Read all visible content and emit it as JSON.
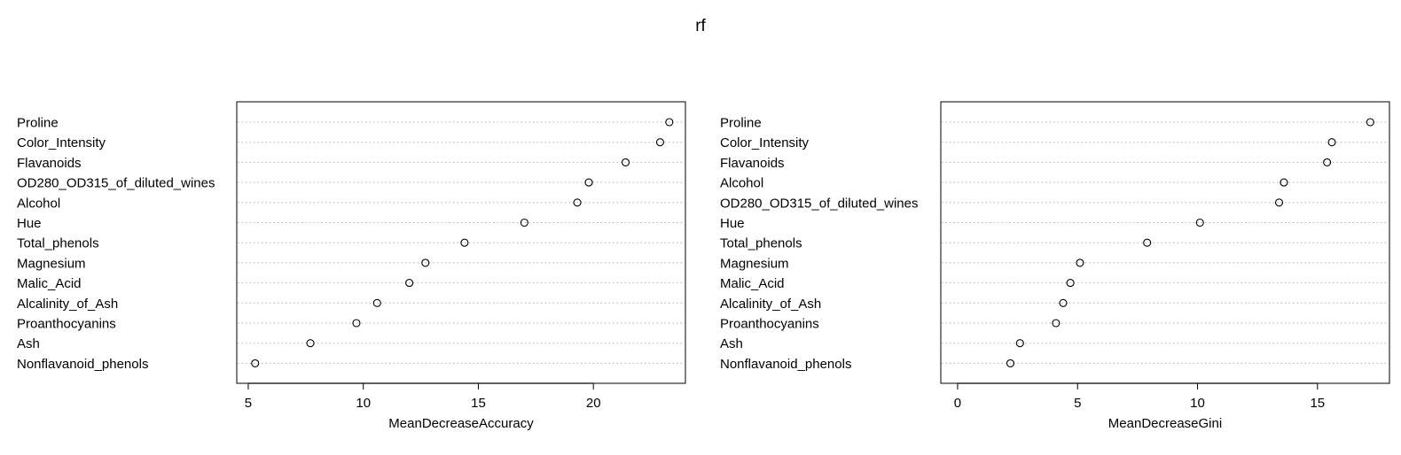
{
  "figure": {
    "title": "rf"
  },
  "chart_data": [
    {
      "type": "scatter",
      "style": "dotchart",
      "title": "",
      "xlabel": "MeanDecreaseAccuracy",
      "ylabel": "",
      "xlim": [
        4.5,
        24
      ],
      "xticks": [
        5,
        10,
        15,
        20
      ],
      "grid": "dotted horizontal",
      "categories": [
        "Proline",
        "Color_Intensity",
        "Flavanoids",
        "OD280_OD315_of_diluted_wines",
        "Alcohol",
        "Hue",
        "Total_phenols",
        "Magnesium",
        "Malic_Acid",
        "Alcalinity_of_Ash",
        "Proanthocyanins",
        "Ash",
        "Nonflavanoid_phenols"
      ],
      "values": [
        23.3,
        22.9,
        21.4,
        19.8,
        19.3,
        17.0,
        14.4,
        12.7,
        12.0,
        10.6,
        9.7,
        7.7,
        5.3
      ]
    },
    {
      "type": "scatter",
      "style": "dotchart",
      "title": "",
      "xlabel": "MeanDecreaseGini",
      "ylabel": "",
      "xlim": [
        -0.7,
        18
      ],
      "xticks": [
        0,
        5,
        10,
        15
      ],
      "grid": "dotted horizontal",
      "categories": [
        "Proline",
        "Color_Intensity",
        "Flavanoids",
        "Alcohol",
        "OD280_OD315_of_diluted_wines",
        "Hue",
        "Total_phenols",
        "Magnesium",
        "Malic_Acid",
        "Alcalinity_of_Ash",
        "Proanthocyanins",
        "Ash",
        "Nonflavanoid_phenols"
      ],
      "values": [
        17.2,
        15.6,
        15.4,
        13.6,
        13.4,
        10.1,
        7.9,
        5.1,
        4.7,
        4.4,
        4.1,
        2.6,
        2.2
      ]
    }
  ]
}
